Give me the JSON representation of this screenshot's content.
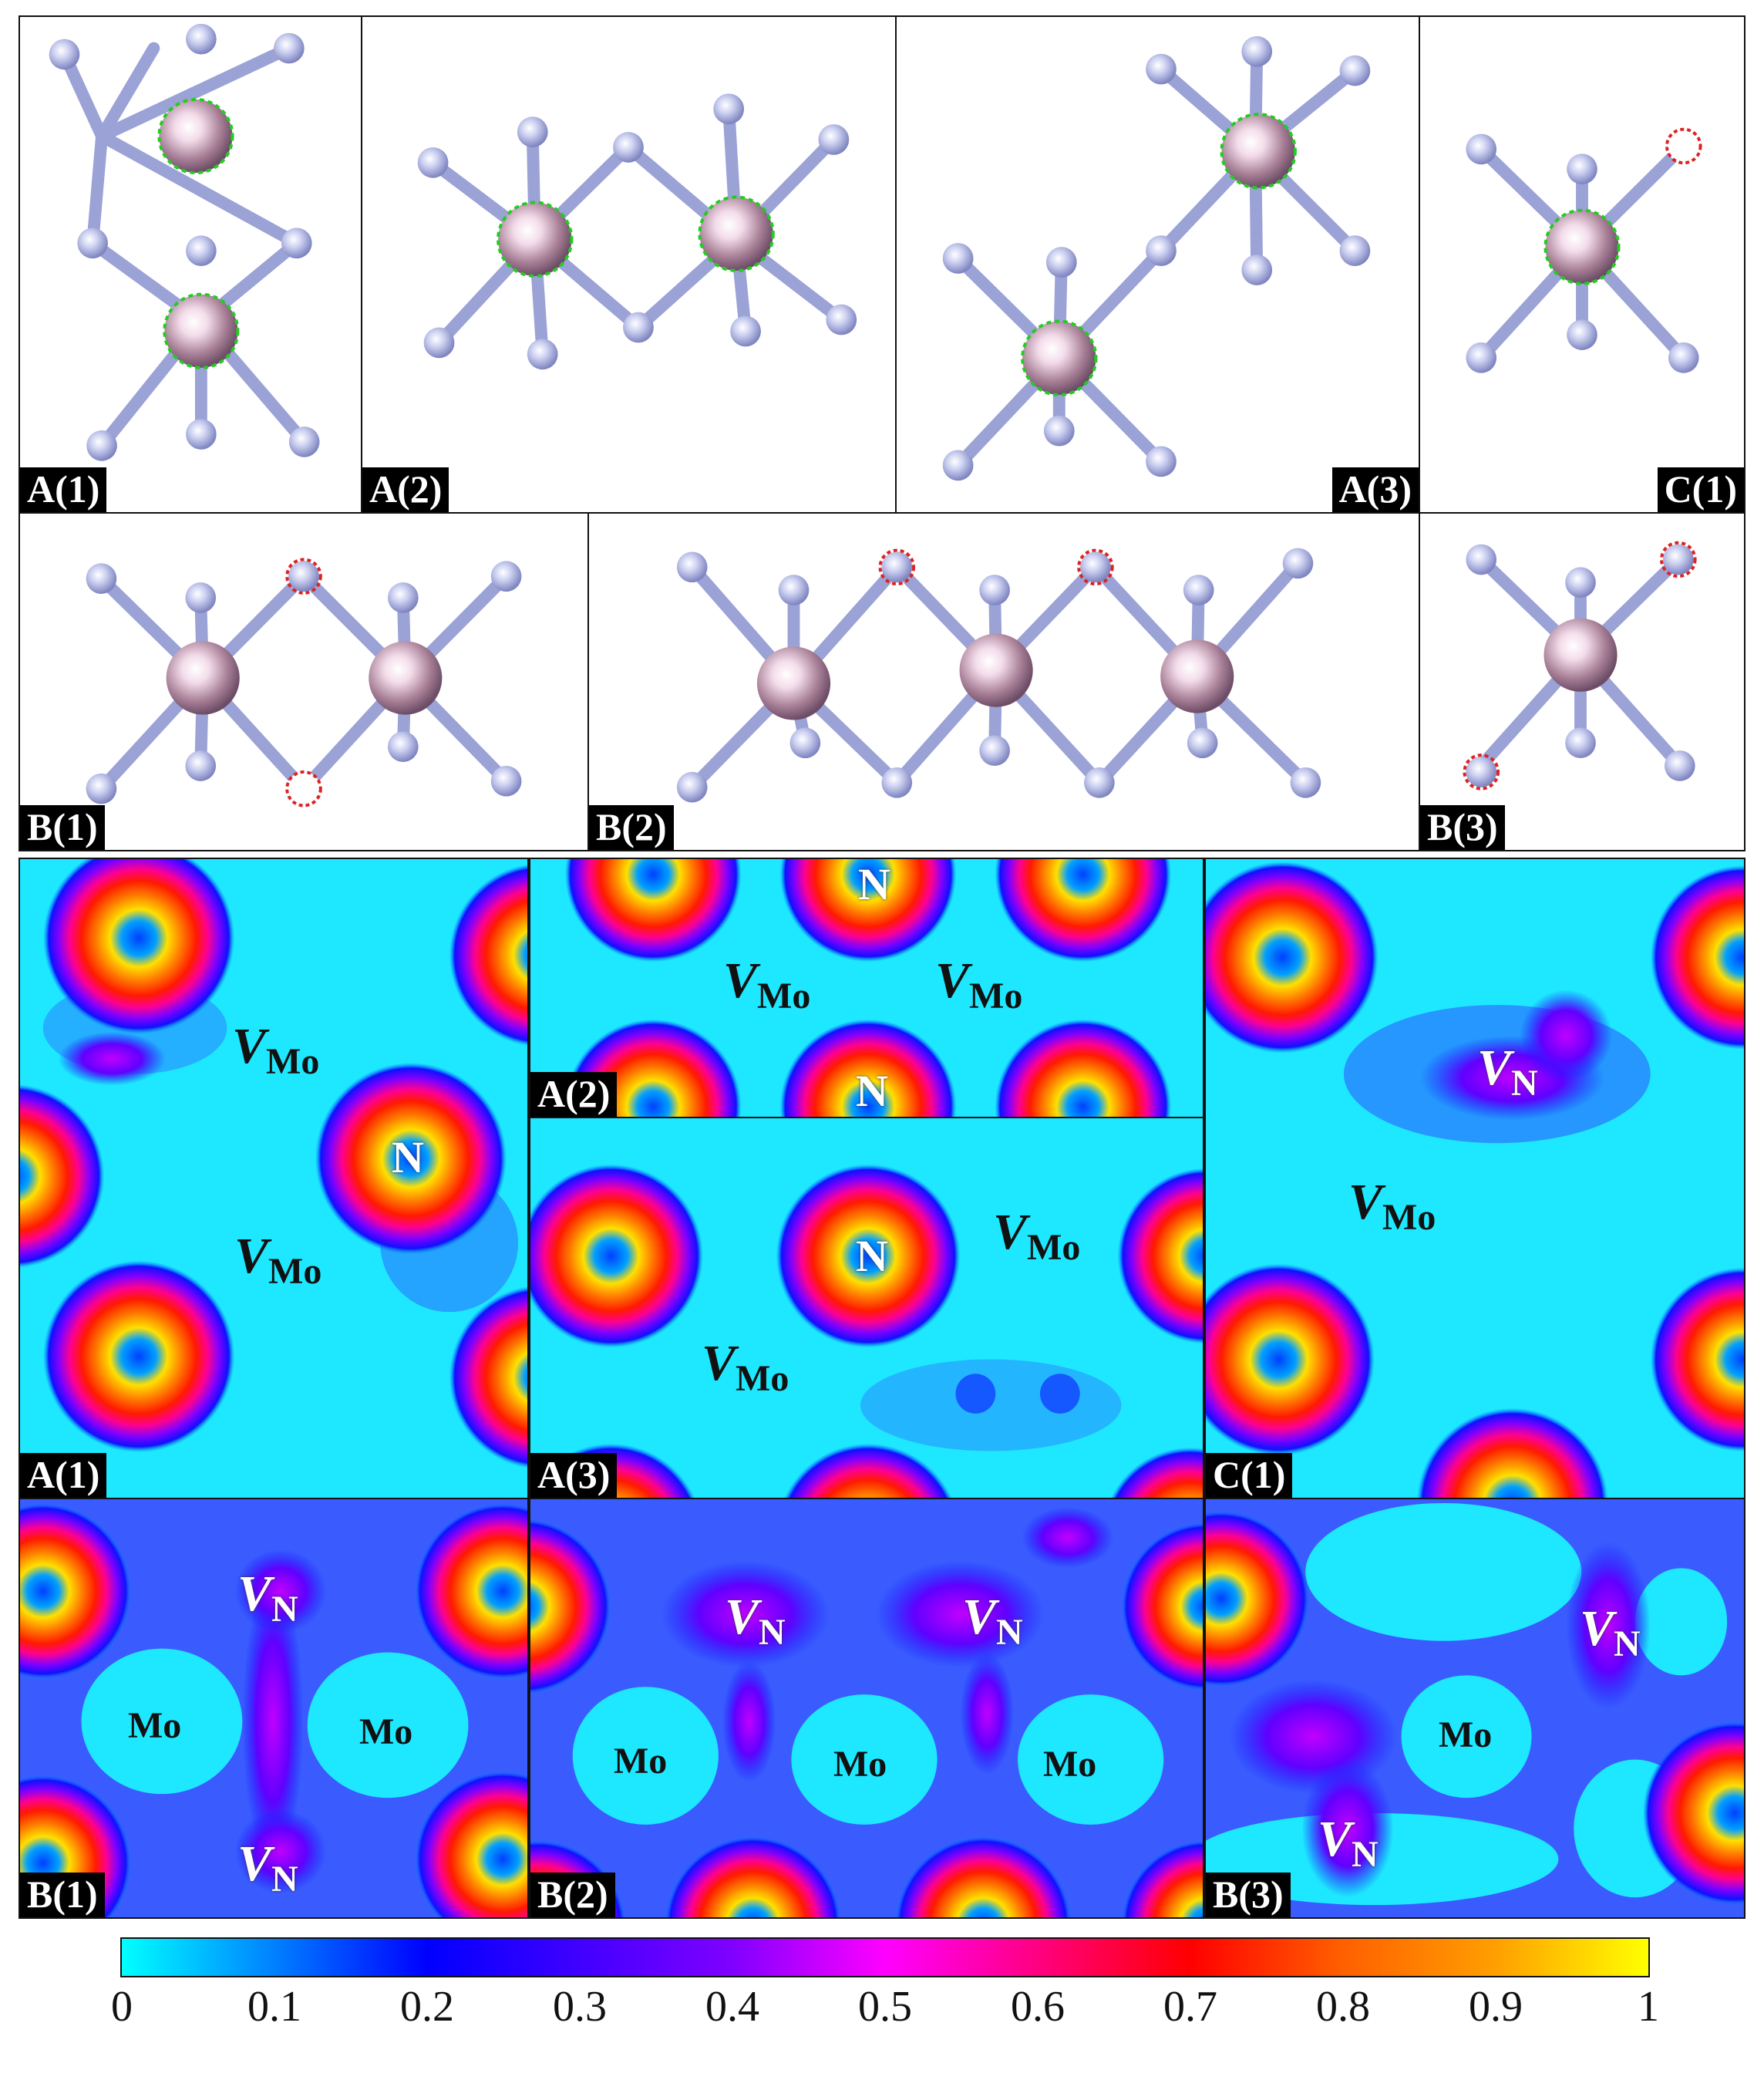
{
  "structure_panels": {
    "a1": "A(1)",
    "a2": "A(2)",
    "a3": "A(3)",
    "c1": "C(1)",
    "b1": "B(1)",
    "b2": "B(2)",
    "b3": "B(3)"
  },
  "map_panels": {
    "a1": "A(1)",
    "a2": "A(2)",
    "a3": "A(3)",
    "c1": "C(1)",
    "b1": "B(1)",
    "b2": "B(2)",
    "b3": "B(3)"
  },
  "annotations": {
    "v": "V",
    "mo_sub": "Mo",
    "n_sub": "N",
    "n_atom": "N",
    "mo_atom": "Mo"
  },
  "colorbar": {
    "ticks": [
      "0",
      "0.1",
      "0.2",
      "0.3",
      "0.4",
      "0.5",
      "0.6",
      "0.7",
      "0.8",
      "0.9",
      "1"
    ],
    "colors": [
      "#00ffff",
      "#0080ff",
      "#0000ff",
      "#4000ff",
      "#8000ff",
      "#ff00ff",
      "#ff0080",
      "#ff0000",
      "#ff6000",
      "#ff9f00",
      "#ffff00"
    ]
  },
  "colors": {
    "mo_atom": "#b08aa8",
    "n_atom": "#b7bde6",
    "vacancy_mo": "#22cc22",
    "vacancy_n": "#dd2222",
    "bond": "#9aa2d6"
  }
}
